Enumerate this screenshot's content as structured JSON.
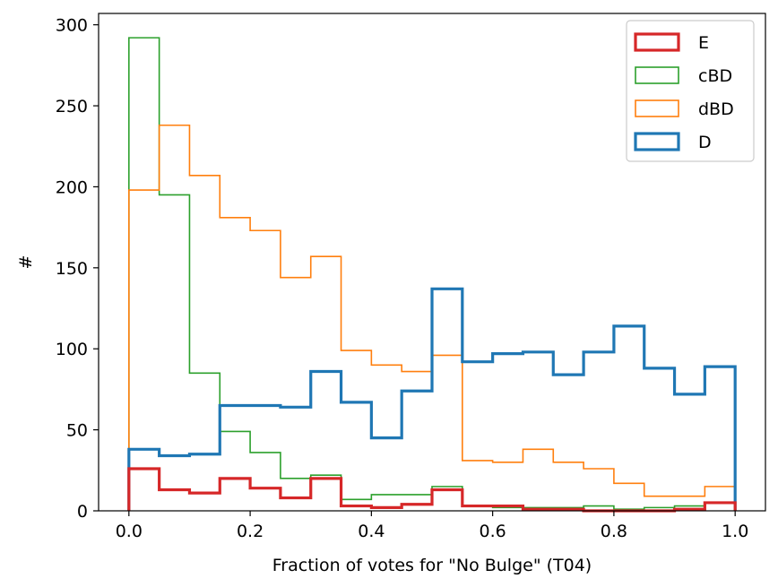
{
  "chart_data": {
    "type": "histogram",
    "title": "",
    "xlabel": "Fraction of votes for \"No Bulge\" (T04)",
    "ylabel": "#",
    "xlim": [
      -0.05,
      1.05
    ],
    "ylim": [
      0,
      307
    ],
    "xticks": [
      0.0,
      0.2,
      0.4,
      0.6,
      0.8,
      1.0
    ],
    "xtick_labels": [
      "0.0",
      "0.2",
      "0.4",
      "0.6",
      "0.8",
      "1.0"
    ],
    "yticks": [
      0,
      50,
      100,
      150,
      200,
      250,
      300
    ],
    "ytick_labels": [
      "0",
      "50",
      "100",
      "150",
      "200",
      "250",
      "300"
    ],
    "bin_edges": [
      0.0,
      0.05,
      0.1,
      0.15,
      0.2,
      0.25,
      0.3,
      0.35,
      0.4,
      0.45,
      0.5,
      0.55,
      0.6,
      0.65,
      0.7,
      0.75,
      0.8,
      0.85,
      0.9,
      0.95,
      1.0
    ],
    "legend_position": "upper right",
    "series": [
      {
        "name": "cBD",
        "color": "#2ca02c",
        "linewidth": "thin",
        "values": [
          292,
          195,
          85,
          49,
          36,
          20,
          22,
          7,
          10,
          10,
          15,
          3,
          2,
          2,
          2,
          3,
          1,
          2,
          3,
          5
        ]
      },
      {
        "name": "dBD",
        "color": "#ff7f0e",
        "linewidth": "thin",
        "values": [
          198,
          238,
          207,
          181,
          173,
          144,
          157,
          99,
          90,
          86,
          96,
          31,
          30,
          38,
          30,
          26,
          17,
          9,
          9,
          15
        ]
      },
      {
        "name": "D",
        "color": "#1f77b4",
        "linewidth": "thick",
        "values": [
          38,
          34,
          35,
          65,
          65,
          64,
          86,
          67,
          45,
          74,
          137,
          92,
          97,
          98,
          84,
          98,
          114,
          88,
          72,
          89
        ]
      },
      {
        "name": "E",
        "color": "#d62728",
        "linewidth": "thick",
        "values": [
          26,
          13,
          11,
          20,
          14,
          8,
          20,
          3,
          2,
          4,
          13,
          3,
          3,
          1,
          1,
          0,
          0,
          0,
          1,
          5
        ]
      }
    ],
    "legend_order": [
      "E",
      "cBD",
      "dBD",
      "D"
    ]
  }
}
